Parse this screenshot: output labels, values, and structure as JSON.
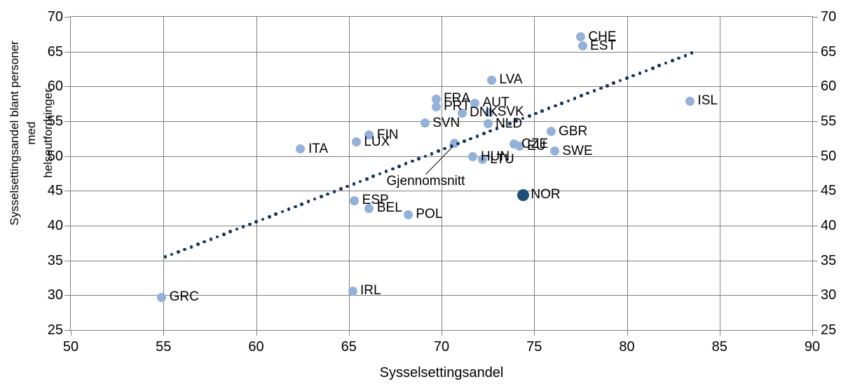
{
  "chart_data": {
    "type": "scatter",
    "xlabel": "Sysselsettingsandel",
    "ylabel_lines": [
      "Sysselsettingsandel blant personer med",
      "helseutfordringer"
    ],
    "xlim": [
      50,
      90
    ],
    "ylim": [
      25,
      70
    ],
    "x_ticks": [
      50,
      55,
      60,
      65,
      70,
      75,
      80,
      85,
      90
    ],
    "y_ticks": [
      25,
      30,
      35,
      40,
      45,
      50,
      55,
      60,
      65,
      70
    ],
    "grid": true,
    "points": [
      {
        "label": "GRC",
        "x": 54.9,
        "y": 29.7
      },
      {
        "label": "ITA",
        "x": 62.4,
        "y": 51.0
      },
      {
        "label": "IRL",
        "x": 65.2,
        "y": 30.6
      },
      {
        "label": "ESP",
        "x": 65.3,
        "y": 43.6
      },
      {
        "label": "LUX",
        "x": 65.4,
        "y": 52.0
      },
      {
        "label": "FIN",
        "x": 66.1,
        "y": 53.0
      },
      {
        "label": "BEL",
        "x": 66.1,
        "y": 42.5
      },
      {
        "label": "POL",
        "x": 68.2,
        "y": 41.6
      },
      {
        "label": "SVN",
        "x": 69.1,
        "y": 54.7
      },
      {
        "label": "FRA",
        "x": 69.7,
        "y": 58.2
      },
      {
        "label": "PRT",
        "x": 69.7,
        "y": 57.1
      },
      {
        "label": "DNK",
        "x": 71.1,
        "y": 56.2
      },
      {
        "label": "HUN",
        "x": 71.7,
        "y": 49.9
      },
      {
        "label": "AUT",
        "x": 71.8,
        "y": 57.6
      },
      {
        "label": "LTU",
        "x": 72.2,
        "y": 49.5
      },
      {
        "label": "NLD",
        "x": 72.5,
        "y": 54.6
      },
      {
        "label": "SVK",
        "x": 72.6,
        "y": 56.3
      },
      {
        "label": "LVA",
        "x": 72.7,
        "y": 60.9
      },
      {
        "label": "CZE",
        "x": 73.9,
        "y": 51.7
      },
      {
        "label": "EU",
        "x": 74.2,
        "y": 51.4
      },
      {
        "label": "NOR",
        "x": 74.4,
        "y": 44.4,
        "dark": true
      },
      {
        "label": "GBR",
        "x": 75.9,
        "y": 53.5
      },
      {
        "label": "SWE",
        "x": 76.1,
        "y": 50.7
      },
      {
        "label": "CHE",
        "x": 77.5,
        "y": 67.1
      },
      {
        "label": "EST",
        "x": 77.6,
        "y": 65.8
      },
      {
        "label": "ISL",
        "x": 83.4,
        "y": 57.9
      }
    ],
    "average_point": {
      "x": 70.7,
      "y": 51.8
    },
    "annotation_label": "Gjennomsnitt",
    "trendline": {
      "x1": 55.1,
      "y1": 35.5,
      "x2": 83.5,
      "y2": 64.8,
      "style": "dotted"
    },
    "legend_position": "none",
    "colors": {
      "point": "#94B1D9",
      "nor_point": "#1F4E79",
      "trend": "#17375E",
      "grid": "#808080",
      "text": "#000000"
    }
  }
}
